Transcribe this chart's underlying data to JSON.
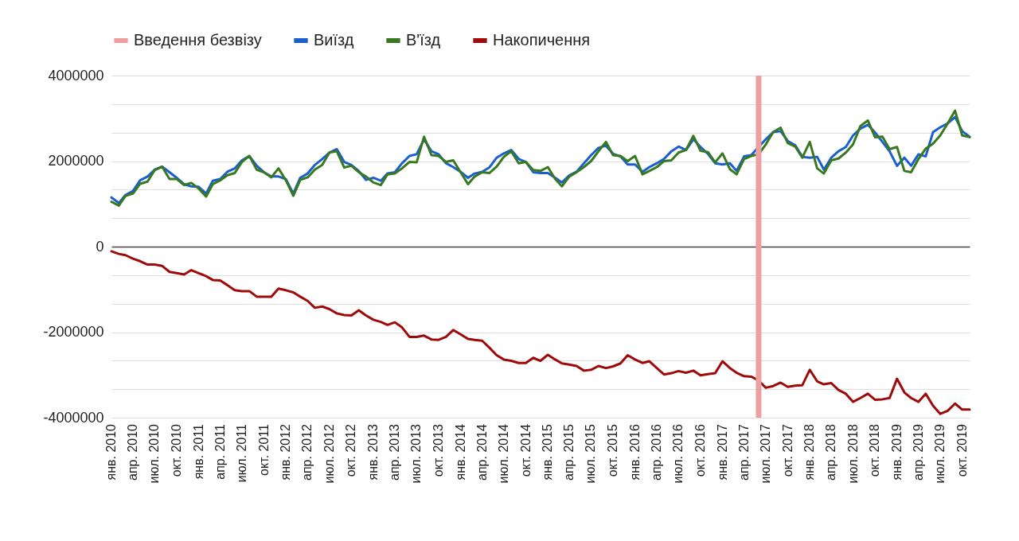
{
  "chart_data": {
    "type": "line",
    "x": [
      "2010-01",
      "2010-02",
      "2010-03",
      "2010-04",
      "2010-05",
      "2010-06",
      "2010-07",
      "2010-08",
      "2010-09",
      "2010-10",
      "2010-11",
      "2010-12",
      "2011-01",
      "2011-02",
      "2011-03",
      "2011-04",
      "2011-05",
      "2011-06",
      "2011-07",
      "2011-08",
      "2011-09",
      "2011-10",
      "2011-11",
      "2011-12",
      "2012-01",
      "2012-02",
      "2012-03",
      "2012-04",
      "2012-05",
      "2012-06",
      "2012-07",
      "2012-08",
      "2012-09",
      "2012-10",
      "2012-11",
      "2012-12",
      "2013-01",
      "2013-02",
      "2013-03",
      "2013-04",
      "2013-05",
      "2013-06",
      "2013-07",
      "2013-08",
      "2013-09",
      "2013-10",
      "2013-11",
      "2013-12",
      "2014-01",
      "2014-02",
      "2014-03",
      "2014-04",
      "2014-05",
      "2014-06",
      "2014-07",
      "2014-08",
      "2014-09",
      "2014-10",
      "2014-11",
      "2014-12",
      "2015-01",
      "2015-02",
      "2015-03",
      "2015-04",
      "2015-05",
      "2015-06",
      "2015-07",
      "2015-08",
      "2015-09",
      "2015-10",
      "2015-11",
      "2015-12",
      "2016-01",
      "2016-02",
      "2016-03",
      "2016-04",
      "2016-05",
      "2016-06",
      "2016-07",
      "2016-08",
      "2016-09",
      "2016-10",
      "2016-11",
      "2016-12",
      "2017-01",
      "2017-02",
      "2017-03",
      "2017-04",
      "2017-05",
      "2017-06",
      "2017-07",
      "2017-08",
      "2017-09",
      "2017-10",
      "2017-11",
      "2017-12",
      "2018-01",
      "2018-02",
      "2018-03",
      "2018-04",
      "2018-05",
      "2018-06",
      "2018-07",
      "2018-08",
      "2018-09",
      "2018-10",
      "2018-11",
      "2018-12",
      "2019-01",
      "2019-02",
      "2019-03",
      "2019-04",
      "2019-05",
      "2019-06",
      "2019-07",
      "2019-08",
      "2019-09",
      "2019-10",
      "2019-11"
    ],
    "series": [
      {
        "name": "Виїзд",
        "color": "#1a5fd0",
        "values": [
          1150000,
          1020000,
          1210000,
          1300000,
          1550000,
          1640000,
          1800000,
          1870000,
          1740000,
          1610000,
          1460000,
          1410000,
          1400000,
          1240000,
          1540000,
          1580000,
          1750000,
          1830000,
          2020000,
          2120000,
          1890000,
          1740000,
          1640000,
          1640000,
          1580000,
          1240000,
          1610000,
          1710000,
          1910000,
          2050000,
          2200000,
          2280000,
          1980000,
          1910000,
          1770000,
          1560000,
          1610000,
          1540000,
          1710000,
          1740000,
          1950000,
          2120000,
          2160000,
          2510000,
          2230000,
          2160000,
          1950000,
          1860000,
          1750000,
          1610000,
          1710000,
          1750000,
          1850000,
          2080000,
          2180000,
          2260000,
          2050000,
          1980000,
          1740000,
          1720000,
          1720000,
          1610000,
          1500000,
          1670000,
          1750000,
          1950000,
          2140000,
          2310000,
          2360000,
          2170000,
          2110000,
          1920000,
          1920000,
          1750000,
          1860000,
          1950000,
          2050000,
          2230000,
          2340000,
          2260000,
          2510000,
          2330000,
          2170000,
          1950000,
          1920000,
          1950000,
          1770000,
          2110000,
          2140000,
          2330000,
          2510000,
          2680000,
          2700000,
          2470000,
          2370000,
          2100000,
          2080000,
          2100000,
          1800000,
          2080000,
          2230000,
          2330000,
          2600000,
          2760000,
          2850000,
          2670000,
          2450000,
          2230000,
          1890000,
          2080000,
          1890000,
          2160000,
          2110000,
          2680000,
          2790000,
          2880000,
          3030000,
          2700000,
          2570000
        ]
      },
      {
        "name": "В'їзд",
        "color": "#38791f",
        "values": [
          1050000,
          960000,
          1190000,
          1240000,
          1470000,
          1520000,
          1790000,
          1870000,
          1580000,
          1580000,
          1440000,
          1490000,
          1360000,
          1170000,
          1460000,
          1550000,
          1670000,
          1720000,
          1980000,
          2120000,
          1800000,
          1740000,
          1620000,
          1830000,
          1550000,
          1190000,
          1560000,
          1620000,
          1800000,
          1910000,
          2200000,
          2230000,
          1850000,
          1890000,
          1740000,
          1640000,
          1500000,
          1440000,
          1690000,
          1710000,
          1830000,
          1980000,
          1970000,
          2570000,
          2140000,
          2120000,
          1980000,
          2020000,
          1740000,
          1460000,
          1640000,
          1740000,
          1720000,
          1870000,
          2100000,
          2230000,
          1950000,
          1980000,
          1790000,
          1770000,
          1860000,
          1580000,
          1410000,
          1640000,
          1740000,
          1860000,
          2000000,
          2230000,
          2450000,
          2140000,
          2120000,
          2000000,
          2120000,
          1690000,
          1770000,
          1860000,
          2000000,
          2020000,
          2200000,
          2260000,
          2590000,
          2240000,
          2210000,
          1970000,
          2180000,
          1810000,
          1690000,
          2050000,
          2120000,
          2160000,
          2390000,
          2680000,
          2780000,
          2420000,
          2340000,
          2080000,
          2450000,
          1830000,
          1710000,
          2020000,
          2060000,
          2200000,
          2390000,
          2820000,
          2950000,
          2560000,
          2570000,
          2280000,
          2330000,
          1770000,
          1740000,
          2050000,
          2290000,
          2410000,
          2600000,
          2880000,
          3180000,
          2600000,
          2560000
        ]
      },
      {
        "name": "Накопичення",
        "color": "#9e0a0a",
        "values": [
          -110000,
          -170000,
          -200000,
          -280000,
          -340000,
          -420000,
          -420000,
          -450000,
          -590000,
          -620000,
          -650000,
          -550000,
          -620000,
          -690000,
          -780000,
          -790000,
          -900000,
          -1020000,
          -1040000,
          -1040000,
          -1170000,
          -1170000,
          -1170000,
          -980000,
          -1020000,
          -1070000,
          -1170000,
          -1270000,
          -1430000,
          -1400000,
          -1460000,
          -1560000,
          -1600000,
          -1610000,
          -1490000,
          -1610000,
          -1710000,
          -1760000,
          -1830000,
          -1770000,
          -1890000,
          -2110000,
          -2110000,
          -2080000,
          -2170000,
          -2180000,
          -2110000,
          -1950000,
          -2050000,
          -2160000,
          -2180000,
          -2200000,
          -2360000,
          -2540000,
          -2640000,
          -2670000,
          -2720000,
          -2720000,
          -2600000,
          -2670000,
          -2530000,
          -2640000,
          -2730000,
          -2760000,
          -2790000,
          -2900000,
          -2880000,
          -2790000,
          -2840000,
          -2800000,
          -2730000,
          -2540000,
          -2640000,
          -2720000,
          -2680000,
          -2840000,
          -2990000,
          -2960000,
          -2910000,
          -2950000,
          -2900000,
          -3010000,
          -2980000,
          -2960000,
          -2680000,
          -2840000,
          -2950000,
          -3030000,
          -3040000,
          -3130000,
          -3300000,
          -3260000,
          -3180000,
          -3280000,
          -3250000,
          -3240000,
          -2880000,
          -3150000,
          -3220000,
          -3190000,
          -3350000,
          -3440000,
          -3630000,
          -3540000,
          -3440000,
          -3580000,
          -3570000,
          -3540000,
          -3090000,
          -3410000,
          -3540000,
          -3630000,
          -3440000,
          -3720000,
          -3910000,
          -3840000,
          -3670000,
          -3810000,
          -3810000
        ]
      }
    ],
    "ref_lines": [
      {
        "axis": "x",
        "value": "2017-06",
        "label": "Введення безвізу",
        "color": "#ee9f9f"
      }
    ],
    "xlim": [
      "2010-01",
      "2019-11"
    ],
    "xticks": [
      {
        "value": "2010-01",
        "label": "янв. 2010"
      },
      {
        "value": "2010-04",
        "label": "апр. 2010"
      },
      {
        "value": "2010-07",
        "label": "июл. 2010"
      },
      {
        "value": "2010-10",
        "label": "окт. 2010"
      },
      {
        "value": "2011-01",
        "label": "янв. 2011"
      },
      {
        "value": "2011-04",
        "label": "апр. 2011"
      },
      {
        "value": "2011-07",
        "label": "июл. 2011"
      },
      {
        "value": "2011-10",
        "label": "окт. 2011"
      },
      {
        "value": "2012-01",
        "label": "янв. 2012"
      },
      {
        "value": "2012-04",
        "label": "апр. 2012"
      },
      {
        "value": "2012-07",
        "label": "июл. 2012"
      },
      {
        "value": "2012-10",
        "label": "окт. 2012"
      },
      {
        "value": "2013-01",
        "label": "янв. 2013"
      },
      {
        "value": "2013-04",
        "label": "апр. 2013"
      },
      {
        "value": "2013-07",
        "label": "июл. 2013"
      },
      {
        "value": "2013-10",
        "label": "окт. 2013"
      },
      {
        "value": "2014-01",
        "label": "янв. 2014"
      },
      {
        "value": "2014-04",
        "label": "апр. 2014"
      },
      {
        "value": "2014-07",
        "label": "июл. 2014"
      },
      {
        "value": "2014-10",
        "label": "окт. 2014"
      },
      {
        "value": "2015-01",
        "label": "янв. 2015"
      },
      {
        "value": "2015-04",
        "label": "апр. 2015"
      },
      {
        "value": "2015-07",
        "label": "июл. 2015"
      },
      {
        "value": "2015-10",
        "label": "окт. 2015"
      },
      {
        "value": "2016-01",
        "label": "янв. 2016"
      },
      {
        "value": "2016-04",
        "label": "апр. 2016"
      },
      {
        "value": "2016-07",
        "label": "июл. 2016"
      },
      {
        "value": "2016-10",
        "label": "окт. 2016"
      },
      {
        "value": "2017-01",
        "label": "янв. 2017"
      },
      {
        "value": "2017-04",
        "label": "апр. 2017"
      },
      {
        "value": "2017-07",
        "label": "июл. 2017"
      },
      {
        "value": "2017-10",
        "label": "окт. 2017"
      },
      {
        "value": "2018-01",
        "label": "янв. 2018"
      },
      {
        "value": "2018-04",
        "label": "апр. 2018"
      },
      {
        "value": "2018-07",
        "label": "июл. 2018"
      },
      {
        "value": "2018-10",
        "label": "окт. 2018"
      },
      {
        "value": "2019-01",
        "label": "янв. 2019"
      },
      {
        "value": "2019-04",
        "label": "апр. 2019"
      },
      {
        "value": "2019-07",
        "label": "июл. 2019"
      },
      {
        "value": "2019-10",
        "label": "окт. 2019"
      }
    ],
    "ylim": [
      -4000000,
      4000000
    ],
    "yticks": [
      -4000000,
      {
        "value": -3333333,
        "label": null
      },
      {
        "value": -2666667,
        "label": null
      },
      -2000000,
      {
        "value": -1333333,
        "label": null
      },
      {
        "value": -666667,
        "label": null
      },
      0,
      {
        "value": 666667,
        "label": null
      },
      {
        "value": 1333333,
        "label": null
      },
      2000000,
      {
        "value": 2666667,
        "label": null
      },
      {
        "value": 3333333,
        "label": null
      },
      4000000
    ],
    "grid": "y",
    "legend": "top",
    "line_style": "solid",
    "marker": "none"
  }
}
